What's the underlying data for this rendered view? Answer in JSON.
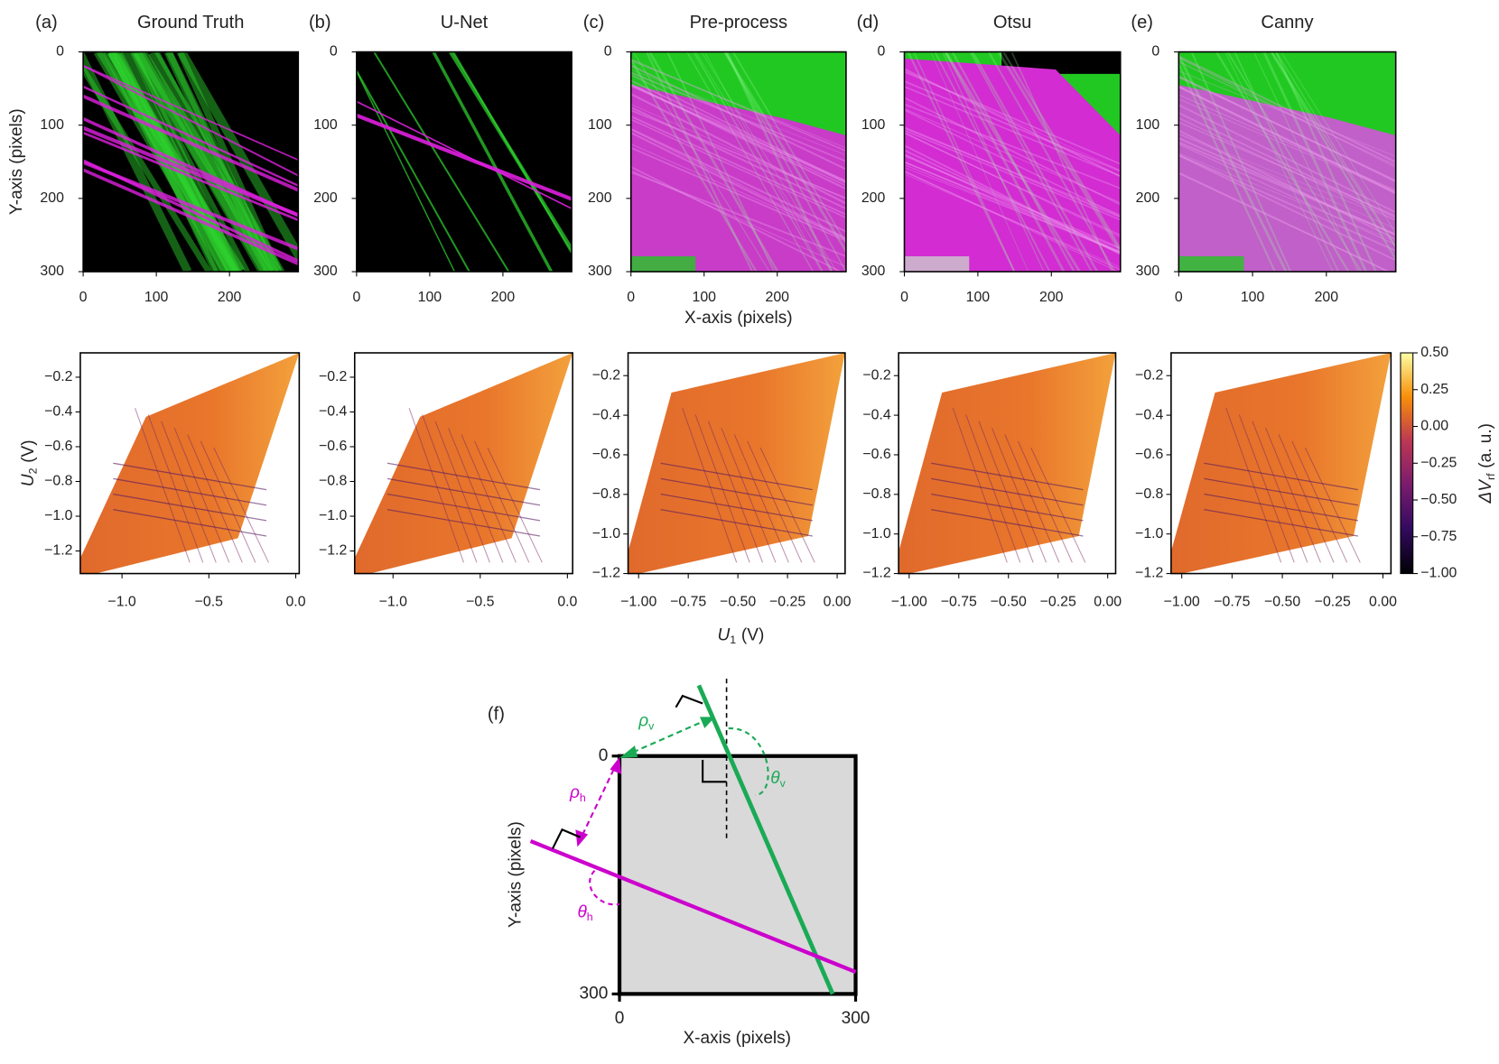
{
  "chart_data": [
    {
      "type": "image",
      "panel_label": "(a)",
      "title": "Ground Truth",
      "y_label": "Y-axis (pixels)",
      "xlim": [
        0,
        294
      ],
      "ylim": [
        300,
        0
      ],
      "xticks": [
        0,
        100,
        200
      ],
      "yticks": [
        0,
        100,
        200,
        300
      ]
    },
    {
      "type": "image",
      "panel_label": "(b)",
      "title": "U-Net",
      "xlim": [
        0,
        294
      ],
      "ylim": [
        300,
        0
      ],
      "xticks": [
        0,
        100,
        200
      ],
      "yticks": [
        0,
        100,
        200,
        300
      ]
    },
    {
      "type": "image",
      "panel_label": "(c)",
      "title": "Pre-process",
      "x_label": "X-axis (pixels)",
      "xlim": [
        0,
        294
      ],
      "ylim": [
        300,
        0
      ],
      "xticks": [
        0,
        100,
        200
      ],
      "yticks": [
        0,
        100,
        200,
        300
      ]
    },
    {
      "type": "image",
      "panel_label": "(d)",
      "title": "Otsu",
      "xlim": [
        0,
        294
      ],
      "ylim": [
        300,
        0
      ],
      "xticks": [
        0,
        100,
        200
      ],
      "yticks": [
        0,
        100,
        200,
        300
      ]
    },
    {
      "type": "image",
      "panel_label": "(e)",
      "title": "Canny",
      "xlim": [
        0,
        294
      ],
      "ylim": [
        300,
        0
      ],
      "xticks": [
        0,
        100,
        200
      ],
      "yticks": [
        0,
        100,
        200,
        300
      ]
    },
    {
      "type": "heatmap",
      "y_label": {
        "main": "U",
        "sub": "2",
        "unit": "(V)"
      },
      "xlim": [
        -1.24,
        0.02
      ],
      "ylim": [
        -1.33,
        -0.06
      ],
      "xticks": [
        {
          "value": -1,
          "label": "−1.0"
        },
        {
          "value": -0.5,
          "label": "−0.5"
        },
        {
          "value": 0,
          "label": "0.0"
        }
      ],
      "yticks": [
        {
          "value": -0.2,
          "label": "−0.2"
        },
        {
          "value": -0.4,
          "label": "−0.4"
        },
        {
          "value": -0.6,
          "label": "−0.6"
        },
        {
          "value": -0.8,
          "label": "−0.8"
        },
        {
          "value": -1.0,
          "label": "−1.0"
        },
        {
          "value": -1.2,
          "label": "−1.2"
        }
      ]
    },
    {
      "type": "heatmap",
      "xlim": [
        -1.22,
        0.03
      ],
      "ylim": [
        -1.33,
        -0.06
      ],
      "xticks": [
        {
          "value": -1,
          "label": "−1.0"
        },
        {
          "value": -0.5,
          "label": "−0.5"
        },
        {
          "value": 0,
          "label": "0.0"
        }
      ],
      "yticks": [
        {
          "value": -0.2,
          "label": "−0.2"
        },
        {
          "value": -0.4,
          "label": "−0.4"
        },
        {
          "value": -0.6,
          "label": "−0.6"
        },
        {
          "value": -0.8,
          "label": "−0.8"
        },
        {
          "value": -1.0,
          "label": "−1.0"
        },
        {
          "value": -1.2,
          "label": "−1.2"
        }
      ]
    },
    {
      "type": "heatmap",
      "x_label": {
        "main": "U",
        "sub": "1",
        "unit": "(V)"
      },
      "xlim": [
        -1.053,
        0.04
      ],
      "ylim": [
        -1.2,
        -0.085
      ],
      "xticks": [
        {
          "value": -1,
          "label": "−1.00"
        },
        {
          "value": -0.75,
          "label": "−0.75"
        },
        {
          "value": -0.5,
          "label": "−0.50"
        },
        {
          "value": -0.25,
          "label": "−0.25"
        },
        {
          "value": 0,
          "label": "0.00"
        }
      ],
      "yticks": [
        {
          "value": -0.2,
          "label": "−0.2"
        },
        {
          "value": -0.4,
          "label": "−0.4"
        },
        {
          "value": -0.6,
          "label": "−0.6"
        },
        {
          "value": -0.8,
          "label": "−0.8"
        },
        {
          "value": -1.0,
          "label": "−1.0"
        },
        {
          "value": -1.2,
          "label": "−1.2"
        }
      ]
    },
    {
      "type": "heatmap",
      "xlim": [
        -1.053,
        0.04
      ],
      "ylim": [
        -1.2,
        -0.085
      ],
      "xticks": [
        {
          "value": -1,
          "label": "−1.00"
        },
        {
          "value": -0.75,
          "label": "−0.75"
        },
        {
          "value": -0.5,
          "label": "−0.50"
        },
        {
          "value": -0.25,
          "label": "−0.25"
        },
        {
          "value": 0,
          "label": "0.00"
        }
      ],
      "yticks": [
        {
          "value": -0.2,
          "label": "−0.2"
        },
        {
          "value": -0.4,
          "label": "−0.4"
        },
        {
          "value": -0.6,
          "label": "−0.6"
        },
        {
          "value": -0.8,
          "label": "−0.8"
        },
        {
          "value": -1.0,
          "label": "−1.0"
        },
        {
          "value": -1.2,
          "label": "−1.2"
        }
      ]
    },
    {
      "type": "heatmap",
      "xlim": [
        -1.053,
        0.04
      ],
      "ylim": [
        -1.2,
        -0.085
      ],
      "xticks": [
        {
          "value": -1,
          "label": "−1.00"
        },
        {
          "value": -0.75,
          "label": "−0.75"
        },
        {
          "value": -0.5,
          "label": "−0.50"
        },
        {
          "value": -0.25,
          "label": "−0.25"
        },
        {
          "value": 0,
          "label": "0.00"
        }
      ],
      "yticks": [
        {
          "value": -0.2,
          "label": "−0.2"
        },
        {
          "value": -0.4,
          "label": "−0.4"
        },
        {
          "value": -0.6,
          "label": "−0.6"
        },
        {
          "value": -0.8,
          "label": "−0.8"
        },
        {
          "value": -1.0,
          "label": "−1.0"
        },
        {
          "value": -1.2,
          "label": "−1.2"
        }
      ],
      "colorbar": {
        "clim": [
          -1,
          0.5
        ],
        "label": {
          "main": "ΔV",
          "sub": "rf",
          "unit": "(a. u.)"
        },
        "ticks": [
          {
            "value": 0.5,
            "label": "0.50"
          },
          {
            "value": 0.25,
            "label": "0.25"
          },
          {
            "value": 0,
            "label": "0.00"
          },
          {
            "value": -0.25,
            "label": "−0.25"
          },
          {
            "value": -0.5,
            "label": "−0.50"
          },
          {
            "value": -0.75,
            "label": "−0.75"
          },
          {
            "value": -1,
            "label": "−1.00"
          }
        ]
      }
    },
    {
      "type": "diagram",
      "panel_label": "(f)",
      "x_label": "X-axis (pixels)",
      "y_label": "Y-axis (pixels)",
      "xlim": [
        0,
        300
      ],
      "ylim": [
        300,
        0
      ],
      "xticks": [
        0,
        300
      ],
      "yticks": [
        0,
        300
      ],
      "annotations": {
        "rho_v": {
          "main": "ρ",
          "sub": "v"
        },
        "theta_v": {
          "main": "θ",
          "sub": "v"
        },
        "rho_h": {
          "main": "ρ",
          "sub": "h"
        },
        "theta_h": {
          "main": "θ",
          "sub": "h"
        }
      }
    }
  ]
}
